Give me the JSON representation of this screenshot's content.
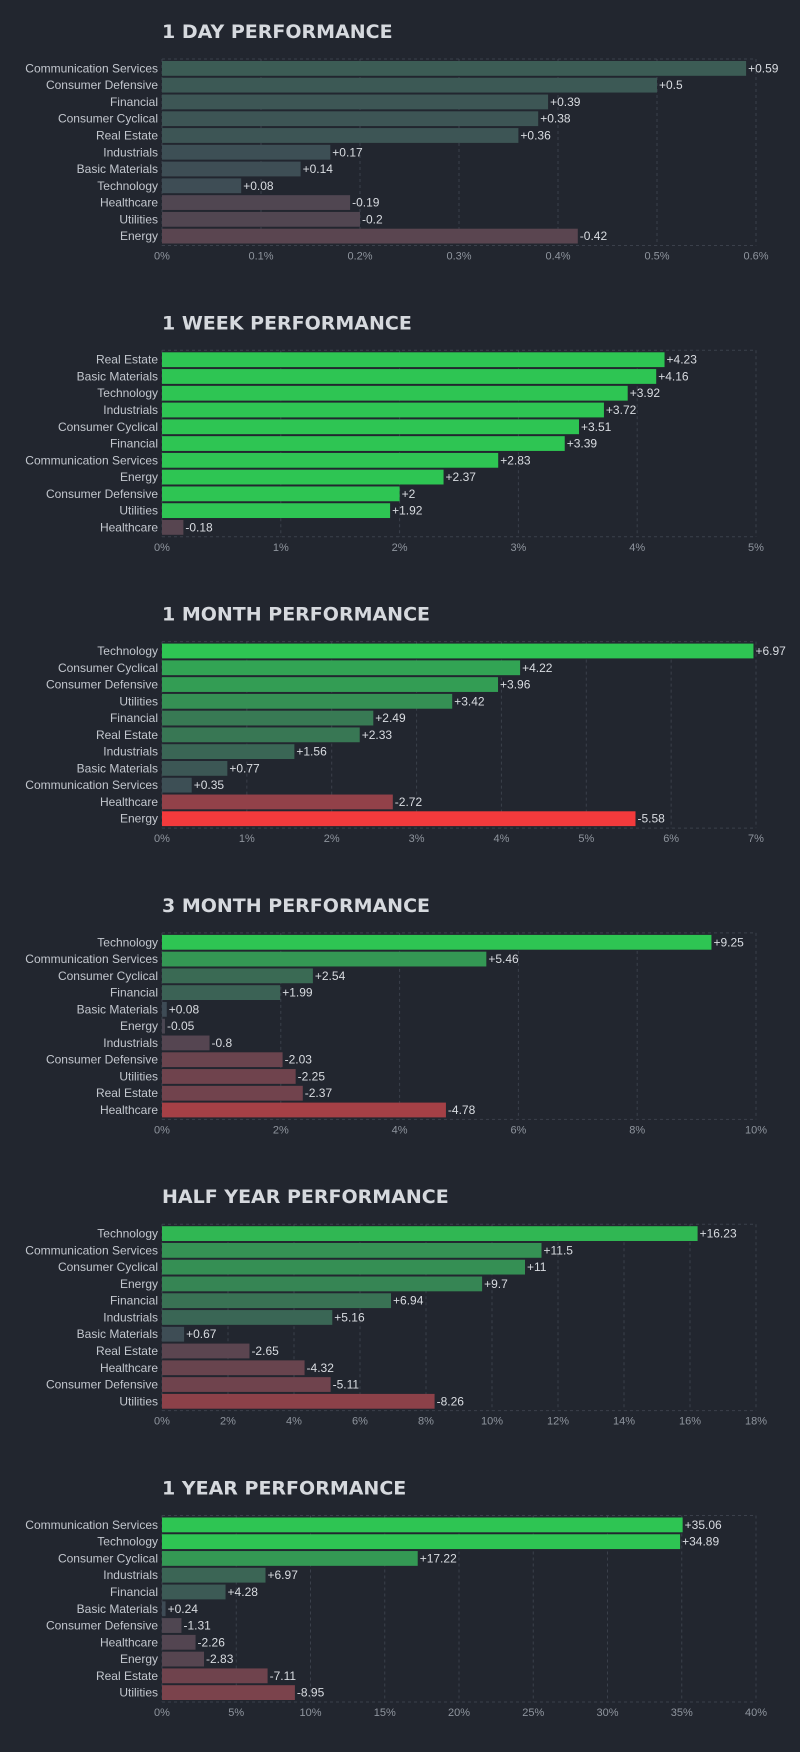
{
  "colors": {
    "background": "#22262f",
    "positive_strong": "#2ec553",
    "positive_weak": "#3d5648",
    "negative_strong": "#f23a3c",
    "negative_weak": "#5a4451",
    "text": "#c3c7ce"
  },
  "chart_data": [
    {
      "type": "bar",
      "orientation": "horizontal",
      "title": "1 DAY PERFORMANCE",
      "categories": [
        "Communication Services",
        "Consumer Defensive",
        "Financial",
        "Consumer Cyclical",
        "Real Estate",
        "Industrials",
        "Basic Materials",
        "Technology",
        "Healthcare",
        "Utilities",
        "Energy"
      ],
      "values": [
        0.59,
        0.5,
        0.39,
        0.38,
        0.36,
        0.17,
        0.14,
        0.08,
        -0.19,
        -0.2,
        -0.42
      ],
      "value_labels": [
        "+0.59",
        "+0.5",
        "+0.39",
        "+0.38",
        "+0.36",
        "+0.17",
        "+0.14",
        "+0.08",
        "-0.19",
        "-0.2",
        "-0.42"
      ],
      "xlim": [
        0,
        0.6
      ],
      "xticks": [
        "0%",
        "0.1%",
        "0.2%",
        "0.3%",
        "0.4%",
        "0.5%",
        "0.6%"
      ],
      "color_scale_max": 3
    },
    {
      "type": "bar",
      "orientation": "horizontal",
      "title": "1 WEEK PERFORMANCE",
      "categories": [
        "Real Estate",
        "Basic Materials",
        "Technology",
        "Industrials",
        "Consumer Cyclical",
        "Financial",
        "Communication Services",
        "Energy",
        "Consumer Defensive",
        "Utilities",
        "Healthcare"
      ],
      "values": [
        4.23,
        4.16,
        3.92,
        3.72,
        3.51,
        3.39,
        2.83,
        2.37,
        2,
        1.92,
        -0.18
      ],
      "value_labels": [
        "+4.23",
        "+4.16",
        "+3.92",
        "+3.72",
        "+3.51",
        "+3.39",
        "+2.83",
        "+2.37",
        "+2",
        "+1.92",
        "-0.18"
      ],
      "xlim": [
        0,
        5
      ],
      "xticks": [
        "0%",
        "1%",
        "2%",
        "3%",
        "4%",
        "5%"
      ],
      "color_scale_max": 1.5
    },
    {
      "type": "bar",
      "orientation": "horizontal",
      "title": "1 MONTH PERFORMANCE",
      "categories": [
        "Technology",
        "Consumer Cyclical",
        "Consumer Defensive",
        "Utilities",
        "Financial",
        "Real Estate",
        "Industrials",
        "Basic Materials",
        "Communication Services",
        "Healthcare",
        "Energy"
      ],
      "values": [
        6.97,
        4.22,
        3.96,
        3.42,
        2.49,
        2.33,
        1.56,
        0.77,
        0.35,
        -2.72,
        -5.58
      ],
      "value_labels": [
        "+6.97",
        "+4.22",
        "+3.96",
        "+3.42",
        "+2.49",
        "+2.33",
        "+1.56",
        "+0.77",
        "+0.35",
        "-2.72",
        "-5.58"
      ],
      "xlim": [
        0,
        7
      ],
      "xticks": [
        "0%",
        "1%",
        "2%",
        "3%",
        "4%",
        "5%",
        "6%",
        "7%"
      ],
      "color_scale_max": 5.5
    },
    {
      "type": "bar",
      "orientation": "horizontal",
      "title": "3 MONTH PERFORMANCE",
      "categories": [
        "Technology",
        "Communication Services",
        "Consumer Cyclical",
        "Financial",
        "Basic Materials",
        "Energy",
        "Industrials",
        "Consumer Defensive",
        "Utilities",
        "Real Estate",
        "Healthcare"
      ],
      "values": [
        9.25,
        5.46,
        2.54,
        1.99,
        0.08,
        -0.05,
        -0.8,
        -2.03,
        -2.25,
        -2.37,
        -4.78
      ],
      "value_labels": [
        "+9.25",
        "+5.46",
        "+2.54",
        "+1.99",
        "+0.08",
        "-0.05",
        "-0.8",
        "-2.03",
        "-2.25",
        "-2.37",
        "-4.78"
      ],
      "xlim": [
        0,
        10
      ],
      "xticks": [
        "0%",
        "2%",
        "4%",
        "6%",
        "8%",
        "10%"
      ],
      "color_scale_max": 8
    },
    {
      "type": "bar",
      "orientation": "horizontal",
      "title": "HALF YEAR PERFORMANCE",
      "categories": [
        "Technology",
        "Communication Services",
        "Consumer Cyclical",
        "Energy",
        "Financial",
        "Industrials",
        "Basic Materials",
        "Real Estate",
        "Healthcare",
        "Consumer Defensive",
        "Utilities"
      ],
      "values": [
        16.23,
        11.5,
        11,
        9.7,
        6.94,
        5.16,
        0.67,
        -2.65,
        -4.32,
        -5.11,
        -8.26
      ],
      "value_labels": [
        "+16.23",
        "+11.5",
        "+11",
        "+9.7",
        "+6.94",
        "+5.16",
        "+0.67",
        "-2.65",
        "-4.32",
        "-5.11",
        "-8.26"
      ],
      "xlim": [
        0,
        18
      ],
      "xticks": [
        "0%",
        "2%",
        "4%",
        "6%",
        "8%",
        "10%",
        "12%",
        "14%",
        "16%",
        "18%"
      ],
      "color_scale_max": 18
    },
    {
      "type": "bar",
      "orientation": "horizontal",
      "title": "1 YEAR PERFORMANCE",
      "categories": [
        "Communication Services",
        "Technology",
        "Consumer Cyclical",
        "Industrials",
        "Financial",
        "Basic Materials",
        "Consumer Defensive",
        "Healthcare",
        "Energy",
        "Real Estate",
        "Utilities"
      ],
      "values": [
        35.06,
        34.89,
        17.22,
        6.97,
        4.28,
        0.24,
        -1.31,
        -2.26,
        -2.83,
        -7.11,
        -8.95
      ],
      "value_labels": [
        "+35.06",
        "+34.89",
        "+17.22",
        "+6.97",
        "+4.28",
        "+0.24",
        "-1.31",
        "-2.26",
        "-2.83",
        "-7.11",
        "-8.95"
      ],
      "xlim": [
        0,
        40
      ],
      "xticks": [
        "0%",
        "5%",
        "10%",
        "15%",
        "20%",
        "25%",
        "30%",
        "35%",
        "40%"
      ],
      "color_scale_max": 25
    }
  ]
}
